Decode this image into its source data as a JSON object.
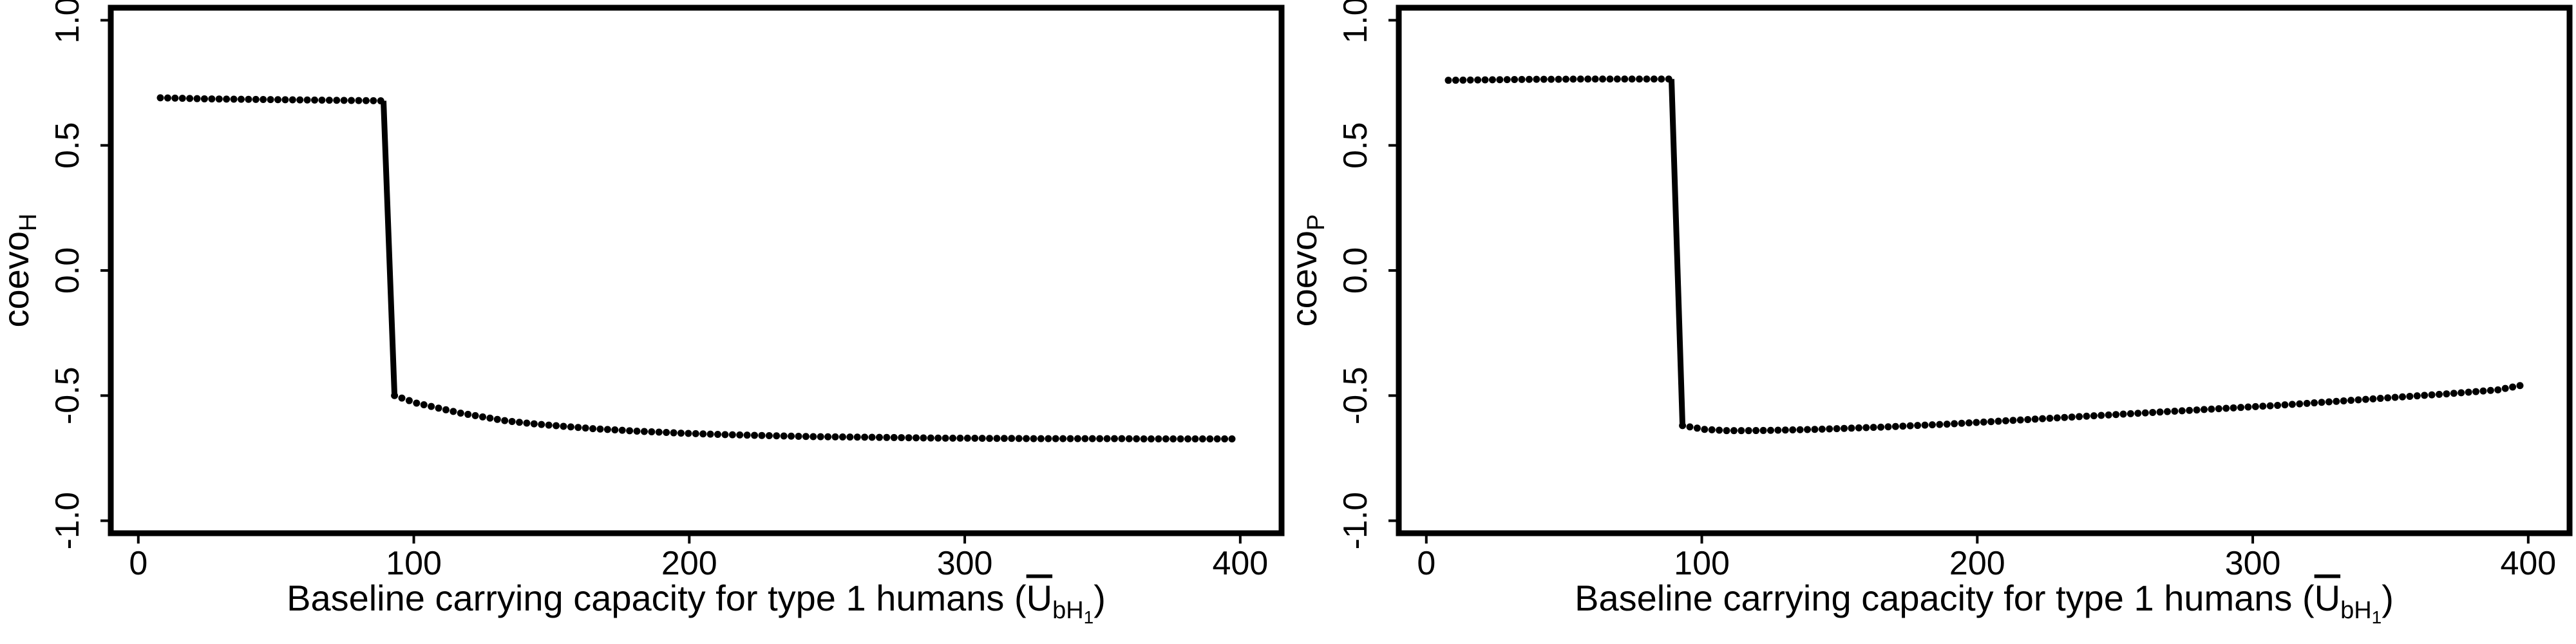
{
  "chart_data": [
    {
      "type": "scatter",
      "title": "",
      "xlabel_main": "Baseline carrying capacity for type 1 humans (",
      "xlabel_symbol": "U",
      "xlabel_sub": "bH",
      "xlabel_subsub": "1",
      "xlabel_close": ")",
      "ylabel_main": "coevo",
      "ylabel_sub": "H",
      "xlim": [
        -10,
        415
      ],
      "ylim": [
        -1.05,
        1.05
      ],
      "xticks": [
        0,
        100,
        200,
        300,
        400
      ],
      "xtick_labels": [
        "0",
        "100",
        "200",
        "300",
        "400"
      ],
      "yticks": [
        -1.0,
        -0.5,
        0.0,
        0.5,
        1.0
      ],
      "ytick_labels": [
        "-1.0",
        "-0.5",
        "0.0",
        "0.5",
        "1.0"
      ],
      "series": [
        {
          "style": "dotted",
          "x": [
            8,
            16,
            24,
            32,
            40,
            48,
            56,
            64,
            72,
            80,
            88
          ],
          "y": [
            0.69,
            0.688,
            0.686,
            0.685,
            0.684,
            0.683,
            0.682,
            0.681,
            0.68,
            0.679,
            0.678
          ]
        },
        {
          "style": "solid",
          "x": [
            89,
            93
          ],
          "y": [
            0.678,
            -0.5
          ]
        },
        {
          "style": "dotted",
          "x": [
            93,
            101,
            109,
            117,
            125,
            133,
            141,
            149,
            157,
            165,
            173,
            181,
            189,
            197,
            205,
            213,
            221,
            229,
            237,
            245,
            253,
            261,
            269,
            277,
            285,
            293,
            301,
            309,
            317,
            325,
            333,
            341,
            349,
            357,
            365,
            373,
            381,
            389,
            397
          ],
          "y": [
            -0.5,
            -0.53,
            -0.55,
            -0.57,
            -0.585,
            -0.6,
            -0.61,
            -0.618,
            -0.625,
            -0.632,
            -0.637,
            -0.642,
            -0.646,
            -0.65,
            -0.653,
            -0.656,
            -0.658,
            -0.66,
            -0.662,
            -0.664,
            -0.665,
            -0.666,
            -0.667,
            -0.668,
            -0.669,
            -0.67,
            -0.67,
            -0.671,
            -0.671,
            -0.672,
            -0.672,
            -0.672,
            -0.672,
            -0.672,
            -0.673,
            -0.673,
            -0.673,
            -0.673,
            -0.673
          ]
        }
      ]
    },
    {
      "type": "scatter",
      "title": "",
      "xlabel_main": "Baseline carrying capacity for type 1 humans (",
      "xlabel_symbol": "U",
      "xlabel_sub": "bH",
      "xlabel_subsub": "1",
      "xlabel_close": ")",
      "ylabel_main": "coevo",
      "ylabel_sub": "P",
      "xlim": [
        -10,
        415
      ],
      "ylim": [
        -1.05,
        1.05
      ],
      "xticks": [
        0,
        100,
        200,
        300,
        400
      ],
      "xtick_labels": [
        "0",
        "100",
        "200",
        "300",
        "400"
      ],
      "yticks": [
        -1.0,
        -0.5,
        0.0,
        0.5,
        1.0
      ],
      "ytick_labels": [
        "-1.0",
        "-0.5",
        "0.0",
        "0.5",
        "1.0"
      ],
      "series": [
        {
          "style": "dotted",
          "x": [
            8,
            16,
            24,
            32,
            40,
            48,
            56,
            64,
            72,
            80,
            88
          ],
          "y": [
            0.76,
            0.761,
            0.762,
            0.763,
            0.764,
            0.764,
            0.765,
            0.765,
            0.765,
            0.765,
            0.765
          ]
        },
        {
          "style": "solid",
          "x": [
            89,
            93
          ],
          "y": [
            0.765,
            -0.62
          ]
        },
        {
          "style": "dotted",
          "x": [
            93,
            101,
            109,
            117,
            125,
            133,
            141,
            149,
            157,
            165,
            173,
            181,
            189,
            197,
            205,
            213,
            221,
            229,
            237,
            245,
            253,
            261,
            269,
            277,
            285,
            293,
            301,
            309,
            317,
            325,
            333,
            341,
            349,
            357,
            365,
            373,
            381,
            389,
            397
          ],
          "y": [
            -0.62,
            -0.635,
            -0.64,
            -0.64,
            -0.639,
            -0.637,
            -0.635,
            -0.632,
            -0.629,
            -0.626,
            -0.622,
            -0.618,
            -0.614,
            -0.609,
            -0.604,
            -0.599,
            -0.594,
            -0.589,
            -0.584,
            -0.579,
            -0.574,
            -0.569,
            -0.564,
            -0.559,
            -0.554,
            -0.549,
            -0.544,
            -0.539,
            -0.533,
            -0.527,
            -0.521,
            -0.515,
            -0.509,
            -0.503,
            -0.497,
            -0.491,
            -0.484,
            -0.477,
            -0.46
          ]
        }
      ]
    }
  ]
}
